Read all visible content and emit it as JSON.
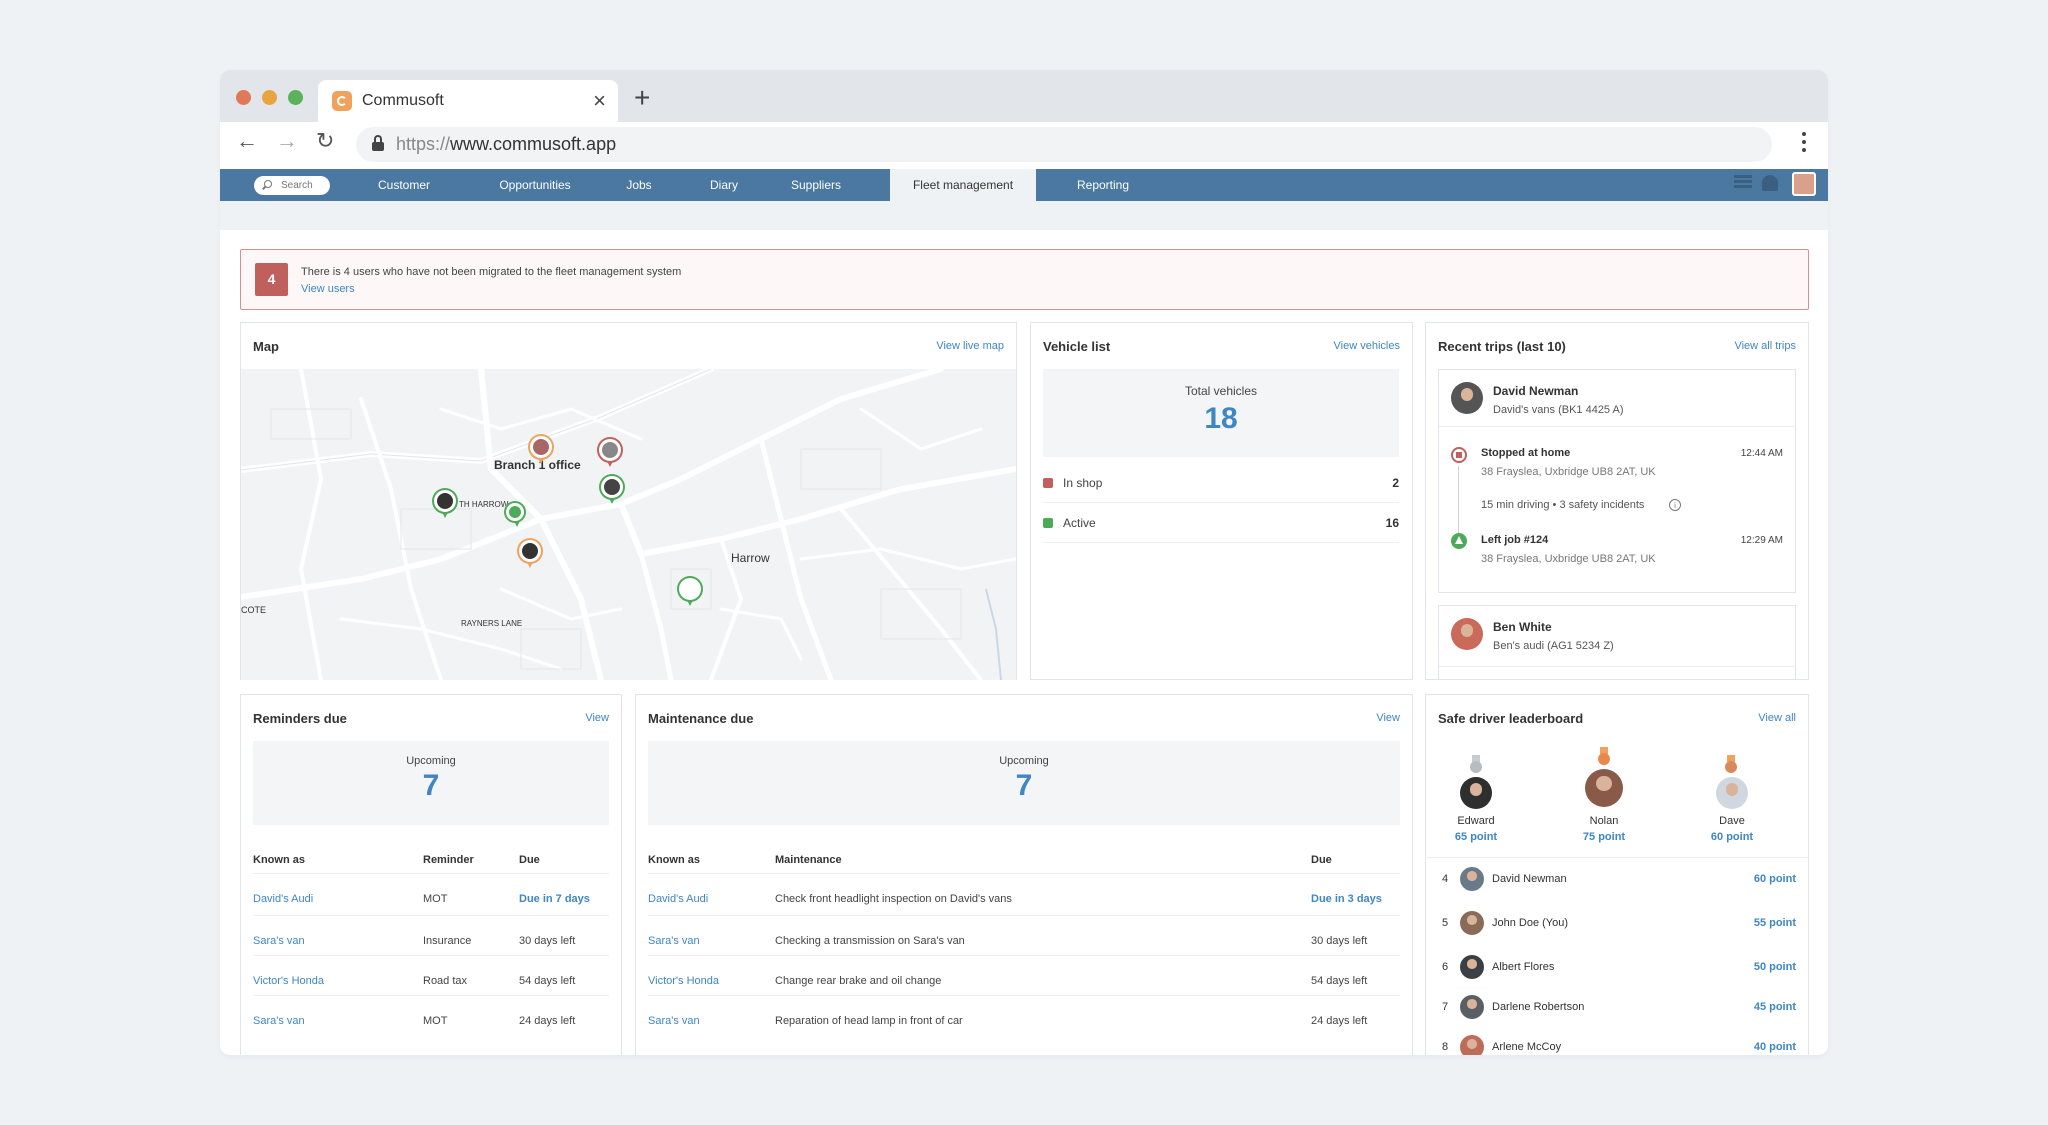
{
  "browser": {
    "tab_title": "Commusoft",
    "url_protocol": "https://",
    "url_host": "www.commusoft.app"
  },
  "nav": {
    "search_placeholder": "Search",
    "items": [
      "Customer",
      "Opportunities",
      "Jobs",
      "Diary",
      "Suppliers",
      "Fleet management",
      "Reporting"
    ],
    "active": "Fleet management"
  },
  "alert": {
    "count": "4",
    "message": "There is 4 users who have not been migrated to the fleet management system",
    "link": "View users"
  },
  "map_card": {
    "title": "Map",
    "link": "View live map",
    "labels": {
      "branch": "Branch 1 office",
      "harrow": "Harrow",
      "north_harrow": "TH HARROW",
      "rayners": "RAYNERS LANE",
      "cote": "COTE"
    }
  },
  "vehicle_card": {
    "title": "Vehicle list",
    "link": "View vehicles",
    "total_label": "Total vehicles",
    "total_value": "18",
    "rows": [
      {
        "name": "In shop",
        "count": "2",
        "color": "#c0605c"
      },
      {
        "name": "Active",
        "count": "16",
        "color": "#4caa5a"
      }
    ]
  },
  "trips_card": {
    "title": "Recent trips (last 10)",
    "link": "View all trips",
    "trips": [
      {
        "driver": "David Newman",
        "vehicle": "David's vans (BK1 4425 A)",
        "stop_title": "Stopped at home",
        "stop_address": "38 Frayslea, Uxbridge UB8 2AT, UK",
        "stop_time": "12:44 AM",
        "summary": "15 min driving  •  3 safety incidents",
        "start_title": "Left job #124",
        "start_address": "38 Frayslea, Uxbridge UB8 2AT, UK",
        "start_time": "12:29 AM"
      },
      {
        "driver": "Ben White",
        "vehicle": "Ben's audi (AG1 5234 Z)"
      }
    ]
  },
  "reminders_card": {
    "title": "Reminders due",
    "link": "View",
    "upcoming_label": "Upcoming",
    "upcoming_value": "7",
    "columns": [
      "Known as",
      "Reminder",
      "Due"
    ],
    "rows": [
      {
        "known_as": "David's Audi",
        "reminder": "MOT",
        "due": "Due in 7 days"
      },
      {
        "known_as": "Sara's van",
        "reminder": "Insurance",
        "due": "30 days left"
      },
      {
        "known_as": "Victor's Honda",
        "reminder": "Road tax",
        "due": "54 days left"
      },
      {
        "known_as": "Sara's van",
        "reminder": "MOT",
        "due": "24 days left"
      }
    ]
  },
  "maintenance_card": {
    "title": "Maintenance due",
    "link": "View",
    "upcoming_label": "Upcoming",
    "upcoming_value": "7",
    "columns": [
      "Known as",
      "Maintenance",
      "Due"
    ],
    "rows": [
      {
        "known_as": "David's Audi",
        "maintenance": "Check front headlight inspection on David's vans",
        "due": "Due in 3 days"
      },
      {
        "known_as": "Sara's van",
        "maintenance": "Checking a transmission on Sara's van",
        "due": "30 days left"
      },
      {
        "known_as": "Victor's Honda",
        "maintenance": "Change rear brake and oil change",
        "due": "54 days left"
      },
      {
        "known_as": "Sara's van",
        "maintenance": "Reparation of head lamp in front of car",
        "due": "24 days left"
      }
    ]
  },
  "leaderboard_card": {
    "title": "Safe driver leaderboard",
    "link": "View all",
    "podium": [
      {
        "name": "Edward",
        "points": "65 point"
      },
      {
        "name": "Nolan",
        "points": "75 point"
      },
      {
        "name": "Dave",
        "points": "60 point"
      }
    ],
    "rows": [
      {
        "rank": "4",
        "name": "David Newman",
        "points": "60 point"
      },
      {
        "rank": "5",
        "name": "John Doe (You)",
        "points": "55 point"
      },
      {
        "rank": "6",
        "name": "Albert Flores",
        "points": "50 point"
      },
      {
        "rank": "7",
        "name": "Darlene Robertson",
        "points": "45 point"
      },
      {
        "rank": "8",
        "name": "Arlene McCoy",
        "points": "40 point"
      }
    ]
  }
}
